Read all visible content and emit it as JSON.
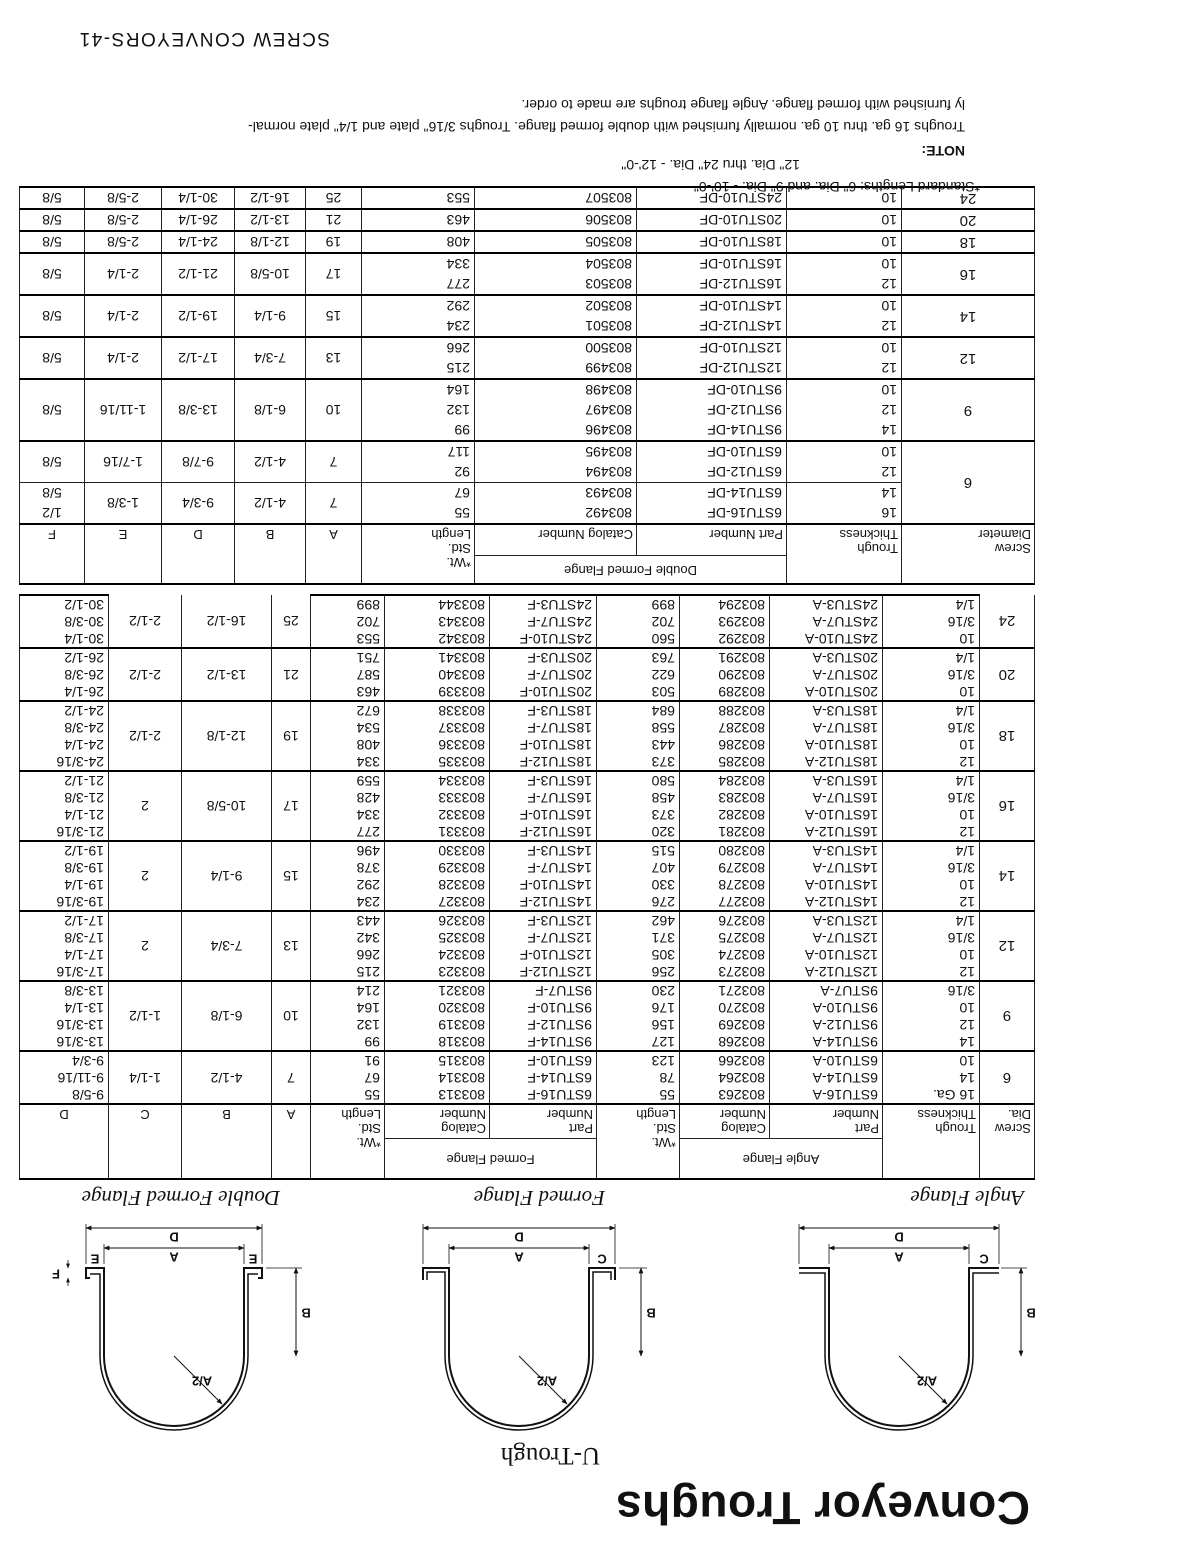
{
  "header": {
    "title": "Conveyor Troughs",
    "subtitle": "U-Trough"
  },
  "diagrams": [
    {
      "caption": "Angle Flange",
      "labels": [
        "A/2",
        "B",
        "C",
        "A",
        "D"
      ]
    },
    {
      "caption": "Formed Flange",
      "labels": [
        "A/2",
        "B",
        "C",
        "A",
        "D"
      ]
    },
    {
      "caption": "Double Formed Flange",
      "labels": [
        "A/2",
        "B",
        "F",
        "E",
        "A",
        "E",
        "D"
      ]
    }
  ],
  "table1": {
    "group_headers": [
      "Angle Flange",
      "Formed Flange"
    ],
    "columns": [
      "Screw\nDia.",
      "Trough\nThickness",
      "Part\nNumber",
      "Catalog\nNumber",
      "*Wt.\nStd.\nLength",
      "Part\nNumber",
      "Catalog\nNumber",
      "*Wt.\nStd.\nLength",
      "A",
      "B",
      "C",
      "D"
    ],
    "groups": [
      {
        "dia": "6",
        "a": "7",
        "b": "4-1/2",
        "c": "1-1/4",
        "rows": [
          [
            "16 Ga.",
            "6STU16-A",
            "803263",
            "55",
            "6STU16-F",
            "803313",
            "55",
            "9-5/8"
          ],
          [
            "14",
            "6STU14-A",
            "803264",
            "78",
            "6STU14-F",
            "803314",
            "67",
            "9-11/16"
          ],
          [
            "10",
            "6STU10-A",
            "803266",
            "123",
            "6STU10-F",
            "803315",
            "91",
            "9-3/4"
          ]
        ]
      },
      {
        "dia": "9",
        "a": "10",
        "b": "6-1/8",
        "c": "1-1/2",
        "rows": [
          [
            "14",
            "9STU14-A",
            "803268",
            "127",
            "9STU14-F",
            "803318",
            "99",
            "13-3/16"
          ],
          [
            "12",
            "9STU12-A",
            "803269",
            "156",
            "9STU12-F",
            "803319",
            "132",
            "13-3/16"
          ],
          [
            "10",
            "9STU10-A",
            "803270",
            "176",
            "9STU10-F",
            "803320",
            "164",
            "13-1/4"
          ],
          [
            "3/16",
            "9STU7-A",
            "803271",
            "230",
            "9STU7-F",
            "803321",
            "214",
            "13-3/8"
          ]
        ]
      },
      {
        "dia": "12",
        "a": "13",
        "b": "7-3/4",
        "c": "2",
        "rows": [
          [
            "12",
            "12STU12-A",
            "803273",
            "256",
            "12STU12-F",
            "803323",
            "215",
            "17-3/16"
          ],
          [
            "10",
            "12STU10-A",
            "803274",
            "305",
            "12STU10-F",
            "803324",
            "266",
            "17-1/4"
          ],
          [
            "3/16",
            "12STU7-A",
            "803275",
            "371",
            "12STU7-F",
            "803325",
            "342",
            "17-3/8"
          ],
          [
            "1/4",
            "12STU3-A",
            "803276",
            "462",
            "12STU3-F",
            "803326",
            "443",
            "17-1/2"
          ]
        ]
      },
      {
        "dia": "14",
        "a": "15",
        "b": "9-1/4",
        "c": "2",
        "rows": [
          [
            "12",
            "14STU12-A",
            "803277",
            "276",
            "14STU12-F",
            "803327",
            "234",
            "19-3/16"
          ],
          [
            "10",
            "14STU10-A",
            "803278",
            "330",
            "14STU10-F",
            "803328",
            "292",
            "19-1/4"
          ],
          [
            "3/16",
            "14STU7-A",
            "803279",
            "407",
            "14STU7-F",
            "803329",
            "378",
            "19-3/8"
          ],
          [
            "1/4",
            "14STU3-A",
            "803280",
            "515",
            "14STU3-F",
            "803330",
            "496",
            "19-1/2"
          ]
        ]
      },
      {
        "dia": "16",
        "a": "17",
        "b": "10-5/8",
        "c": "2",
        "rows": [
          [
            "12",
            "16STU12-A",
            "803281",
            "320",
            "16STU12-F",
            "803331",
            "277",
            "21-3/16"
          ],
          [
            "10",
            "16STU10-A",
            "803282",
            "373",
            "16STU10-F",
            "803332",
            "334",
            "21-1/4"
          ],
          [
            "3/16",
            "16STU7-A",
            "803283",
            "458",
            "16STU7-F",
            "803333",
            "428",
            "21-3/8"
          ],
          [
            "1/4",
            "16STU3-A",
            "803284",
            "580",
            "16STU3-F",
            "803334",
            "559",
            "21-1/2"
          ]
        ]
      },
      {
        "dia": "18",
        "a": "19",
        "b": "12-1/8",
        "c": "2-1/2",
        "rows": [
          [
            "12",
            "18STU12-A",
            "803285",
            "373",
            "18STU12-F",
            "803335",
            "334",
            "24-3/16"
          ],
          [
            "10",
            "18STU10-A",
            "803286",
            "443",
            "18STU10-F",
            "803336",
            "408",
            "24-1/4"
          ],
          [
            "3/16",
            "18STU7-A",
            "803287",
            "558",
            "18STU7-F",
            "803337",
            "534",
            "24-3/8"
          ],
          [
            "1/4",
            "18STU3-A",
            "803288",
            "684",
            "18STU3-F",
            "803338",
            "672",
            "24-1/2"
          ]
        ]
      },
      {
        "dia": "20",
        "a": "21",
        "b": "13-1/2",
        "c": "2-1/2",
        "rows": [
          [
            "10",
            "20STU10-A",
            "803289",
            "503",
            "20STU10-F",
            "803339",
            "463",
            "26-1/4"
          ],
          [
            "3/16",
            "20STU7-A",
            "803290",
            "622",
            "20STU7-F",
            "803340",
            "587",
            "26-3/8"
          ],
          [
            "1/4",
            "20STU3-A",
            "803291",
            "763",
            "20STU3-F",
            "803341",
            "751",
            "26-1/2"
          ]
        ]
      },
      {
        "dia": "24",
        "a": "25",
        "b": "16-1/2",
        "c": "2-1/2",
        "rows": [
          [
            "10",
            "24STU10-A",
            "803292",
            "560",
            "24STU10-F",
            "803342",
            "553",
            "30-1/4"
          ],
          [
            "3/16",
            "24STU7-A",
            "803293",
            "702",
            "24STU7-F",
            "803343",
            "702",
            "30-3/8"
          ],
          [
            "1/4",
            "24STU3-A",
            "803294",
            "899",
            "24STU3-F",
            "803344",
            "899",
            "30-1/2"
          ]
        ]
      }
    ]
  },
  "table2": {
    "group_header": "Double Formed Flange",
    "columns": [
      "Screw\nDiameter",
      "Trough\nThickness",
      "Part Number",
      "Catalog Number",
      "*Wt.\nStd.\nLength",
      "A",
      "B",
      "D",
      "E",
      "F"
    ],
    "groups": [
      {
        "dia": "6",
        "subs": [
          {
            "a": "7",
            "b": "4-1/2",
            "d": "9-3/4",
            "e": "1-3/8",
            "f": [
              "1/2",
              "5/8"
            ],
            "rows": [
              [
                "16",
                "6STU16-DF",
                "803492",
                "55"
              ],
              [
                "14",
                "6STU14-DF",
                "803493",
                "67"
              ]
            ]
          },
          {
            "a": "7",
            "b": "4-1/2",
            "d": "9-7/8",
            "e": "1-7/16",
            "f": [
              "5/8"
            ],
            "rows": [
              [
                "12",
                "6STU12-DF",
                "803494",
                "92"
              ],
              [
                "10",
                "6STU10-DF",
                "803495",
                "117"
              ]
            ]
          }
        ]
      },
      {
        "dia": "9",
        "subs": [
          {
            "a": "10",
            "b": "6-1/8",
            "d": "13-3/8",
            "e": "1-11/16",
            "f": [
              "5/8"
            ],
            "rows": [
              [
                "14",
                "9STU14-DF",
                "803496",
                "99"
              ],
              [
                "12",
                "9STU12-DF",
                "803497",
                "132"
              ],
              [
                "10",
                "9STU10-DF",
                "803498",
                "164"
              ]
            ]
          }
        ]
      },
      {
        "dia": "12",
        "subs": [
          {
            "a": "13",
            "b": "7-3/4",
            "d": "17-1/2",
            "e": "2-1/4",
            "f": [
              "5/8"
            ],
            "rows": [
              [
                "12",
                "12STU12-DF",
                "803499",
                "215"
              ],
              [
                "10",
                "12STU10-DF",
                "803500",
                "266"
              ]
            ]
          }
        ]
      },
      {
        "dia": "14",
        "subs": [
          {
            "a": "15",
            "b": "9-1/4",
            "d": "19-1/2",
            "e": "2-1/4",
            "f": [
              "5/8"
            ],
            "rows": [
              [
                "12",
                "14STU12-DF",
                "803501",
                "234"
              ],
              [
                "10",
                "14STU10-DF",
                "803502",
                "292"
              ]
            ]
          }
        ]
      },
      {
        "dia": "16",
        "subs": [
          {
            "a": "17",
            "b": "10-5/8",
            "d": "21-1/2",
            "e": "2-1/4",
            "f": [
              "5/8"
            ],
            "rows": [
              [
                "12",
                "16STU12-DF",
                "803503",
                "277"
              ],
              [
                "10",
                "16STU10-DF",
                "803504",
                "334"
              ]
            ]
          }
        ]
      },
      {
        "dia": "18",
        "subs": [
          {
            "a": "19",
            "b": "12-1/8",
            "d": "24-1/4",
            "e": "2-5/8",
            "f": [
              "5/8"
            ],
            "rows": [
              [
                "10",
                "18STU10-DF",
                "803505",
                "408"
              ]
            ]
          }
        ]
      },
      {
        "dia": "20",
        "subs": [
          {
            "a": "21",
            "b": "13-1/2",
            "d": "26-1/4",
            "e": "2-5/8",
            "f": [
              "5/8"
            ],
            "rows": [
              [
                "10",
                "20STU10-DF",
                "803506",
                "463"
              ]
            ]
          }
        ]
      },
      {
        "dia": "24",
        "subs": [
          {
            "a": "25",
            "b": "16-1/2",
            "d": "30-1/4",
            "e": "2-5/8",
            "f": [
              "5/8"
            ],
            "rows": [
              [
                "10",
                "24STU10-DF",
                "803507",
                "553"
              ]
            ]
          }
        ]
      }
    ]
  },
  "notes": {
    "standard_lengths": [
      "*Standard Lengths: 6\" Dia. and 9\" Dia. - 10'-0\"",
      "12\" Dia. thru 24\" Dia. - 12'-0\""
    ],
    "label": "NOTE:",
    "lines": [
      "Troughs 16 ga. thru 10 ga. normally furnished with double formed flange. Troughs 3/16\" plate and 1/4\" plate normal-",
      "ly furnished with formed flange. Angle flange troughs are made to order."
    ]
  },
  "footer": "SCREW CONVEYORS-41"
}
